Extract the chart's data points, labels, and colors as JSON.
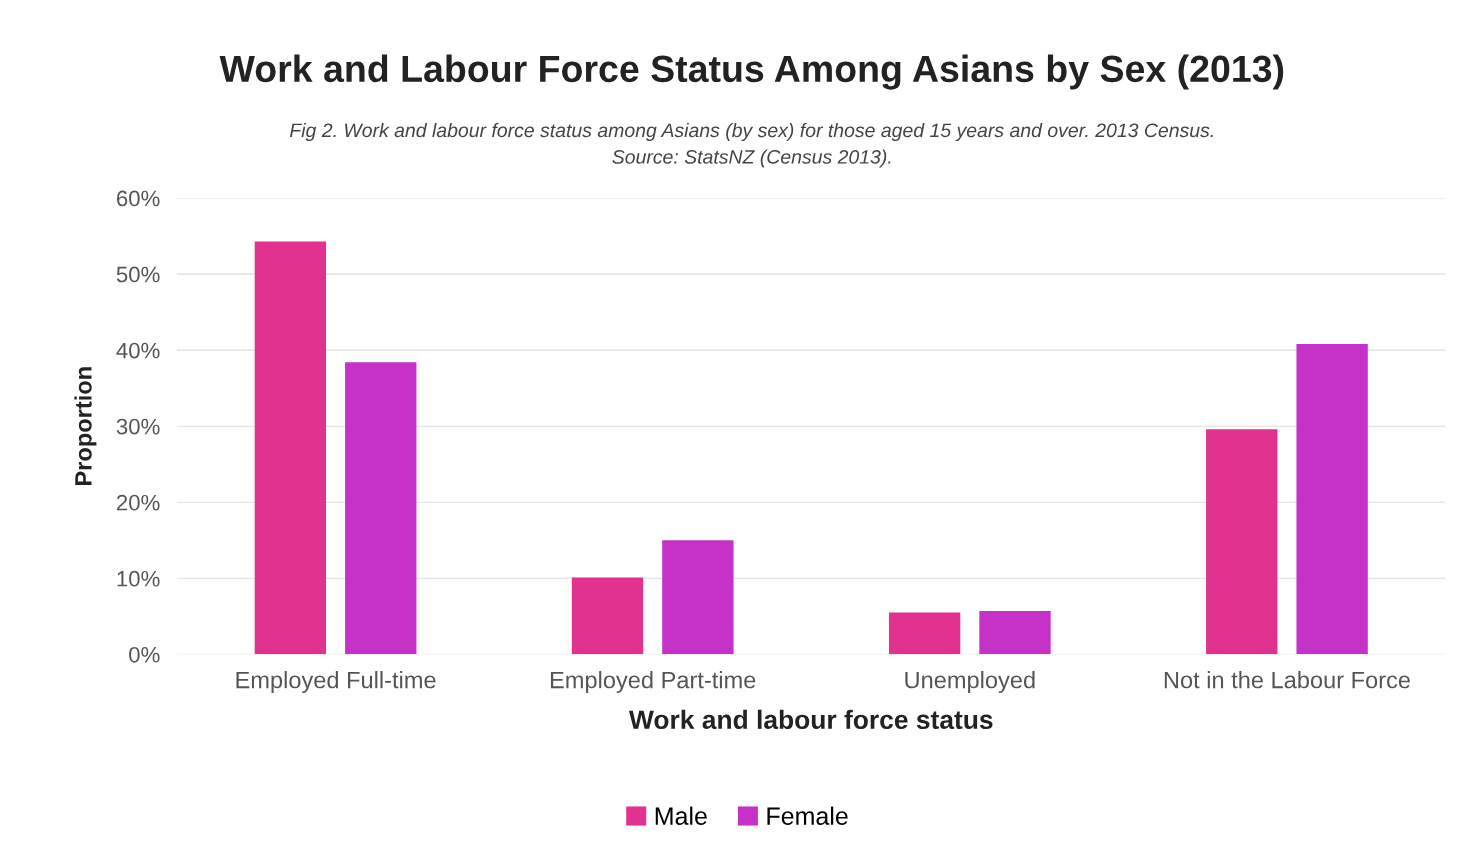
{
  "chart_data": {
    "type": "bar",
    "title": "Work and Labour Force Status Among Asians by Sex (2013)",
    "subtitle": "Fig 2. Work and labour force status among Asians (by sex) for those aged 15 years and over. 2013 Census.\nSource: StatsNZ (Census 2013).",
    "xlabel": "Work and labour force status",
    "ylabel": "Proportion",
    "categories": [
      "Employed Full-time",
      "Employed Part-time",
      "Unemployed",
      "Not in the Labour Force"
    ],
    "series": [
      {
        "name": "Male",
        "color": "#e0328e",
        "values": [
          0.543,
          0.101,
          0.055,
          0.296
        ]
      },
      {
        "name": "Female",
        "color": "#c632c8",
        "values": [
          0.384,
          0.15,
          0.057,
          0.408
        ]
      }
    ],
    "ylim": [
      0,
      0.6
    ],
    "yticks": [
      {
        "value": 0,
        "label": "0%"
      },
      {
        "value": 0.1,
        "label": "10%"
      },
      {
        "value": 0.2,
        "label": "20%"
      },
      {
        "value": 0.3,
        "label": "30%"
      },
      {
        "value": 0.4,
        "label": "40%"
      },
      {
        "value": 0.5,
        "label": "50%"
      },
      {
        "value": 0.6,
        "label": "60%"
      }
    ],
    "grid": "y",
    "legend": "bottom"
  }
}
